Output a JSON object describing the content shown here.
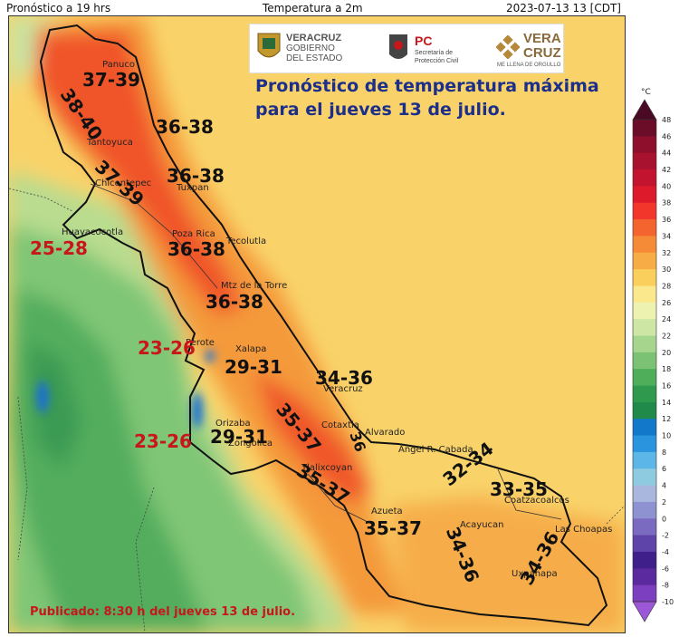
{
  "header": {
    "left": "Pronóstico a 19 hrs",
    "center": "Temperatura a 2m",
    "right": "2023-07-13 13 [CDT]"
  },
  "title": {
    "line1": "Pronóstico de temperatura máxima",
    "line2": "para el jueves 13 de julio."
  },
  "published": "Publicado: 8:30 h del jueves 13 de julio.",
  "logos": {
    "veracruz_gob": [
      "VERACRUZ",
      "GOBIERNO",
      "DEL ESTADO"
    ],
    "pc": {
      "abbr": "PC",
      "lines": [
        "Secretaría de",
        "Protección Civil"
      ]
    },
    "veracruz_brand": {
      "word1": "VERA",
      "word2": "CRUZ",
      "slogan": "ME LLENA DE ORGULLO"
    }
  },
  "ranges": [
    {
      "text": "37-39",
      "color": "black"
    },
    {
      "text": "38-40",
      "color": "black"
    },
    {
      "text": "36-38",
      "color": "black"
    },
    {
      "text": "36-38",
      "color": "black"
    },
    {
      "text": "37-39",
      "color": "black"
    },
    {
      "text": "25-28",
      "color": "red"
    },
    {
      "text": "36-38",
      "color": "black"
    },
    {
      "text": "36-38",
      "color": "black"
    },
    {
      "text": "23-26",
      "color": "red"
    },
    {
      "text": "29-31",
      "color": "black"
    },
    {
      "text": "34-36",
      "color": "black"
    },
    {
      "text": "35-37",
      "color": "black"
    },
    {
      "text": "23-26",
      "color": "red"
    },
    {
      "text": "29-31",
      "color": "black"
    },
    {
      "text": "36",
      "color": "black"
    },
    {
      "text": "35-37",
      "color": "black"
    },
    {
      "text": "32-34",
      "color": "black"
    },
    {
      "text": "33-35",
      "color": "black"
    },
    {
      "text": "35-37",
      "color": "black"
    },
    {
      "text": "34-36",
      "color": "black"
    },
    {
      "text": "34-36",
      "color": "black"
    }
  ],
  "cities": [
    "Panuco",
    "Tantoyuca",
    "Chicontepec",
    "Tuxpan",
    "Huayacocotla",
    "Poza Rica",
    "Tecolutla",
    "Mtz de la Torre",
    "Perote",
    "Xalapa",
    "Veracruz",
    "Orizaba",
    "Zongolica",
    "Cotaxtla",
    "Alvarado",
    "Angel R. Cabada",
    "Tlalixcoyan",
    "Coatzacoalcos",
    "Azueta",
    "Acayucan",
    "Las Choapas",
    "Uxpanapa"
  ],
  "legend": {
    "unit": "°C",
    "ticks": [
      48,
      46,
      44,
      42,
      40,
      38,
      36,
      34,
      32,
      30,
      28,
      26,
      24,
      22,
      20,
      18,
      16,
      14,
      12,
      10,
      8,
      6,
      4,
      2,
      0,
      -2,
      -4,
      -6,
      -8,
      -10
    ],
    "colors": [
      "#4a0a23",
      "#6b0d28",
      "#8e0f2b",
      "#a8122e",
      "#c3142f",
      "#dc1a2c",
      "#f3362b",
      "#f4642e",
      "#f58a37",
      "#f7ac45",
      "#fbcf5c",
      "#fbe88c",
      "#eef2b0",
      "#cde6a4",
      "#a6d68e",
      "#7cc274",
      "#4fae5a",
      "#2f9a4e",
      "#1f8a4a",
      "#1278c9",
      "#2a95de",
      "#5cb6e8",
      "#8ecbe0",
      "#a9b7de",
      "#8e92d0",
      "#7a6ac0",
      "#5e44a8",
      "#3f1f8a",
      "#5a2a9e",
      "#7b3fbf",
      "#9b57d8"
    ]
  }
}
